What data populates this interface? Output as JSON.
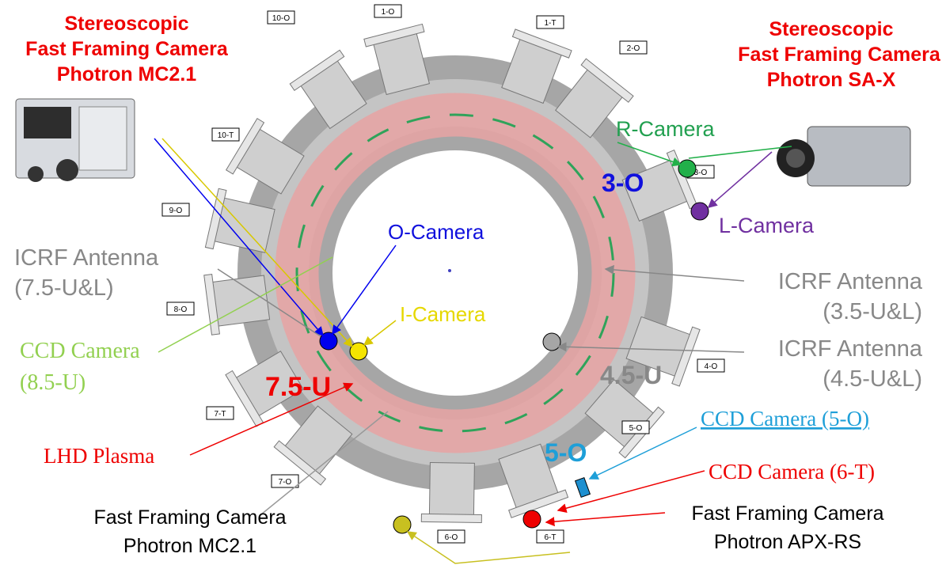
{
  "ports": [
    "10-O",
    "1-O",
    "1-T",
    "2-O",
    "10-T",
    "3-O",
    "9-O",
    "8-O",
    "4-O",
    "7-T",
    "5-O",
    "7-O",
    "6-O",
    "6-T"
  ],
  "labels": {
    "stereo_mc21": [
      "Stereoscopic",
      "Fast Framing Camera",
      "Photron MC2.1"
    ],
    "stereo_sax": [
      "Stereoscopic",
      "Fast Framing Camera",
      "Photron SA-X"
    ],
    "r_camera": "R-Camera",
    "port_3o": "3-O",
    "l_camera": "L-Camera",
    "o_camera": "O-Camera",
    "icrf_75": [
      "ICRF Antenna",
      "(7.5-U&L)"
    ],
    "icrf_35": [
      "ICRF Antenna",
      "(3.5-U&L)"
    ],
    "i_camera": "I-Camera",
    "ccd_85": [
      "CCD Camera",
      "(8.5-U)"
    ],
    "sec_75u": "7.5-U",
    "sec_45u": "4.5-U",
    "icrf_45": [
      "ICRF Antenna",
      "(4.5-U&L)"
    ],
    "lhd_plasma": "LHD Plasma",
    "ccd_5o": "CCD Camera (5-O)",
    "sec_5o": "5-O",
    "ccd_6t": "CCD Camera (6-T)",
    "ffc_mc21": [
      "Fast Framing Camera",
      "Photron MC2.1"
    ],
    "ffc_apx": [
      "Fast Framing Camera",
      "Photron APX-RS"
    ]
  }
}
